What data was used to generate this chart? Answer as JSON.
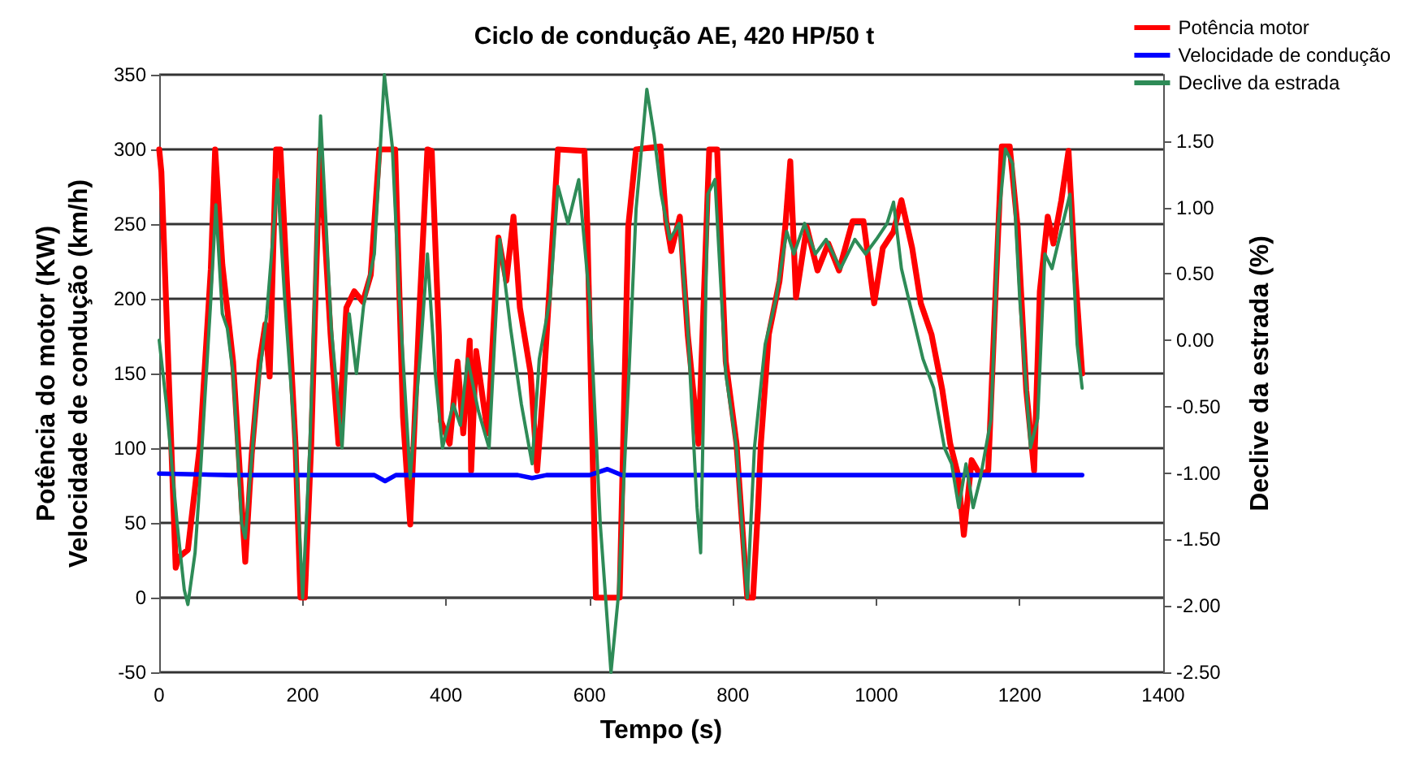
{
  "chart_data": {
    "type": "line",
    "title": "Ciclo de condução AE, 420 HP/50 t",
    "xlabel": "Tempo (s)",
    "ylabel": "Potência do motor (KW)\nVelocidade de condução (km/h)",
    "y2label": "Declive da estrada (%)",
    "xlim": [
      0,
      1400
    ],
    "xticks": [
      0,
      200,
      400,
      600,
      800,
      1000,
      1200,
      1400
    ],
    "ylim": [
      -50,
      350
    ],
    "yticks": [
      -50,
      0,
      50,
      100,
      150,
      200,
      250,
      300,
      350
    ],
    "y2lim": [
      -2.5,
      2.0
    ],
    "y2ticks": [
      {
        "value": -2.5,
        "label": "-2.50"
      },
      {
        "value": -2,
        "label": "-2.00"
      },
      {
        "value": -1.5,
        "label": "-1.50"
      },
      {
        "value": -1,
        "label": "-1.00"
      },
      {
        "value": -0.5,
        "label": "-0.50"
      },
      {
        "value": 0,
        "label": "0.00"
      },
      {
        "value": 0.5,
        "label": "0.50"
      },
      {
        "value": 1,
        "label": "1.00"
      },
      {
        "value": 1.5,
        "label": "1.50"
      }
    ],
    "grid": "y",
    "legend": "top right",
    "marker": "none",
    "line_style": "solid",
    "series": [
      {
        "name": "Potência motor",
        "color": "#ff0000",
        "x": [
          0,
          3,
          23,
          27,
          40,
          57,
          72,
          78,
          88,
          103,
          120,
          129,
          140,
          148,
          154,
          163,
          169,
          178,
          190,
          197,
          203,
          212,
          224,
          239,
          250,
          261,
          272,
          284,
          295,
          307,
          329,
          340,
          350,
          363,
          374,
          380,
          390,
          393,
          405,
          416,
          424,
          433,
          435,
          442,
          458,
          473,
          484,
          494,
          503,
          518,
          527,
          537,
          556,
          593,
          597,
          609,
          642,
          654,
          665,
          699,
          707,
          714,
          726,
          737,
          752,
          767,
          778,
          790,
          805,
          820,
          828,
          835,
          839,
          850,
          865,
          873,
          880,
          888,
          903,
          918,
          933,
          948,
          967,
          982,
          997,
          1009,
          1024,
          1035,
          1050,
          1062,
          1077,
          1092,
          1103,
          1114,
          1122,
          1133,
          1145,
          1156,
          1167,
          1175,
          1186,
          1197,
          1209,
          1220,
          1228,
          1239,
          1247,
          1258,
          1268,
          1277,
          1287
        ],
        "values": [
          300,
          285,
          20,
          27,
          32,
          103,
          220,
          300,
          223,
          158,
          24,
          96,
          158,
          183,
          148,
          300,
          300,
          212,
          103,
          0,
          0,
          103,
          300,
          176,
          103,
          194,
          205,
          198,
          216,
          300,
          300,
          121,
          49,
          194,
          300,
          299,
          176,
          118,
          103,
          158,
          110,
          172,
          85,
          165,
          110,
          241,
          212,
          255,
          194,
          150,
          85,
          150,
          300,
          299,
          248,
          0,
          0,
          248,
          300,
          302,
          252,
          232,
          255,
          176,
          103,
          300,
          300,
          158,
          103,
          0,
          0,
          60,
          103,
          176,
          212,
          248,
          292,
          201,
          248,
          219,
          237,
          219,
          252,
          252,
          197,
          234,
          245,
          266,
          234,
          197,
          176,
          139,
          103,
          82,
          42,
          92,
          82,
          85,
          212,
          302,
          302,
          248,
          139,
          85,
          205,
          255,
          237,
          266,
          299,
          219,
          150
        ]
      },
      {
        "name": "Velocidade de condução",
        "color": "#0000ff",
        "x": [
          0,
          100,
          200,
          300,
          315,
          330,
          500,
          520,
          540,
          600,
          625,
          645,
          800,
          1000,
          1200,
          1287
        ],
        "values": [
          83,
          82,
          82,
          82,
          78,
          82,
          82,
          80,
          82,
          82,
          86,
          82,
          82,
          82,
          82,
          82
        ]
      },
      {
        "name": "Declive da estrada",
        "color": "#2e8b57",
        "axis": "y2",
        "x": [
          0,
          10,
          25,
          35,
          40,
          50,
          57,
          72,
          79,
          88,
          95,
          103,
          115,
          120,
          135,
          150,
          165,
          175,
          190,
          200,
          210,
          225,
          240,
          255,
          265,
          275,
          285,
          300,
          314,
          325,
          335,
          350,
          365,
          374,
          385,
          395,
          410,
          420,
          430,
          445,
          460,
          475,
          490,
          505,
          520,
          530,
          545,
          556,
          570,
          585,
          600,
          615,
          630,
          640,
          655,
          665,
          680,
          690,
          700,
          712,
          725,
          737,
          750,
          755,
          765,
          775,
          790,
          805,
          820,
          830,
          845,
          860,
          875,
          885,
          900,
          915,
          930,
          950,
          970,
          985,
          1000,
          1015,
          1024,
          1035,
          1050,
          1065,
          1080,
          1095,
          1105,
          1115,
          1125,
          1135,
          1145,
          1160,
          1170,
          1180,
          1190,
          1200,
          1215,
          1225,
          1235,
          1245,
          1260,
          1270,
          1280,
          1287
        ],
        "values": [
          0.0,
          -0.48,
          -1.38,
          -1.88,
          -1.99,
          -1.6,
          -1.04,
          0.31,
          1.02,
          0.2,
          0.09,
          -0.25,
          -1.38,
          -1.49,
          -0.48,
          0.2,
          1.21,
          0.31,
          -0.81,
          -1.94,
          -0.81,
          1.69,
          0.09,
          -0.81,
          0.2,
          -0.25,
          0.26,
          0.65,
          2.0,
          1.46,
          0.31,
          -1.04,
          -0.03,
          0.65,
          -0.25,
          -0.81,
          -0.48,
          -0.64,
          -0.14,
          -0.53,
          -0.81,
          0.76,
          0.09,
          -0.48,
          -0.93,
          -0.14,
          0.31,
          1.16,
          0.88,
          1.21,
          0.31,
          -1.38,
          -2.5,
          -1.94,
          -0.25,
          0.99,
          1.89,
          1.55,
          1.1,
          0.76,
          0.88,
          0.09,
          -1.26,
          -1.6,
          1.1,
          1.21,
          -0.25,
          -0.81,
          -1.94,
          -0.81,
          -0.03,
          0.31,
          0.82,
          0.65,
          0.88,
          0.65,
          0.76,
          0.54,
          0.76,
          0.65,
          0.76,
          0.88,
          1.04,
          0.54,
          0.2,
          -0.14,
          -0.36,
          -0.81,
          -0.93,
          -1.26,
          -0.93,
          -1.26,
          -1.04,
          -0.59,
          0.88,
          1.44,
          1.33,
          0.31,
          -0.81,
          -0.59,
          0.65,
          0.54,
          0.88,
          1.1,
          -0.03,
          -0.36
        ]
      }
    ]
  }
}
